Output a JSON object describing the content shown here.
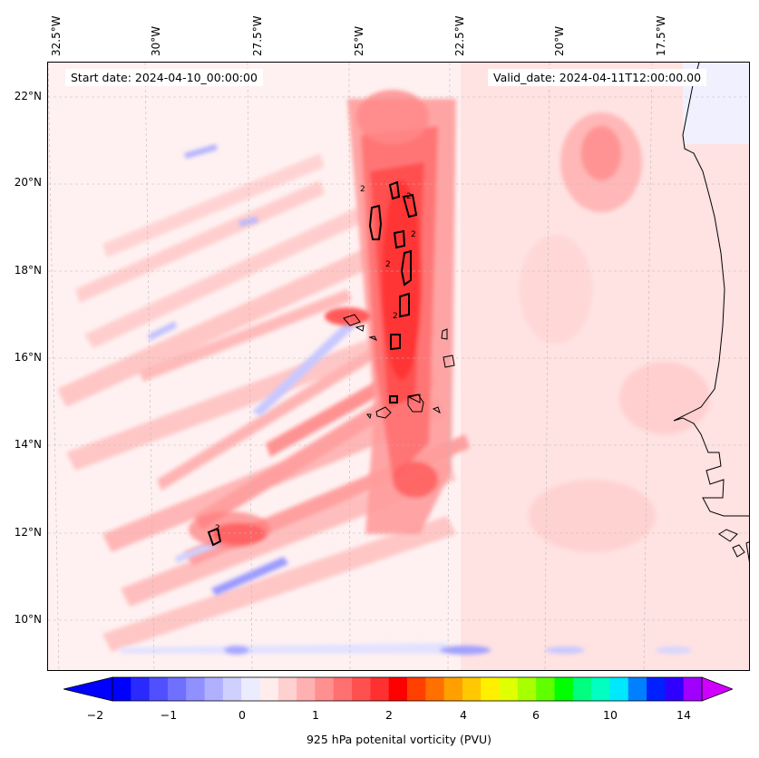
{
  "map": {
    "start_date": "Start date: 2024-04-10_00:00:00",
    "valid_date": "Valid_date: 2024-04-11T12:00:00.00",
    "lon_labels": [
      "32.5°W",
      "30°W",
      "27.5°W",
      "25°W",
      "22.5°W",
      "20°W",
      "17.5°W"
    ],
    "lat_labels": [
      "22°N",
      "20°N",
      "18°N",
      "16°N",
      "14°N",
      "12°N",
      "10°N"
    ],
    "contour_label": "2",
    "colors": {
      "background": "#fff1f1",
      "light_pink": "#ffd9d9",
      "pink": "#ffb3b3",
      "salmon": "#ff8c8c",
      "red": "#ff5050",
      "deep_red": "#ff1f1f",
      "light_blue": "#e8e8ff",
      "blue": "#a8a8ff",
      "coast": "#000000"
    }
  },
  "colorbar": {
    "label": "925 hPa potenital vorticity (PVU)",
    "ticks": [
      "−2",
      "−1",
      "0",
      "1",
      "2",
      "4",
      "6",
      "10",
      "14"
    ],
    "colors": [
      "#0000ff",
      "#2a2aff",
      "#5050ff",
      "#7070ff",
      "#9090ff",
      "#b0b0ff",
      "#d0d0ff",
      "#ececff",
      "#ffecec",
      "#ffd0d0",
      "#ffb0b0",
      "#ff9090",
      "#ff7070",
      "#ff5050",
      "#ff3030",
      "#ff0000",
      "#ff4000",
      "#ff7000",
      "#ffa000",
      "#ffc800",
      "#fff000",
      "#e0ff00",
      "#a8ff00",
      "#60ff00",
      "#00ff00",
      "#00ff80",
      "#00ffc0",
      "#00e8ff",
      "#0080ff",
      "#0020ff",
      "#3000ff",
      "#a000ff"
    ],
    "extend_min": "#0000ff",
    "extend_max": "#d000ff"
  }
}
